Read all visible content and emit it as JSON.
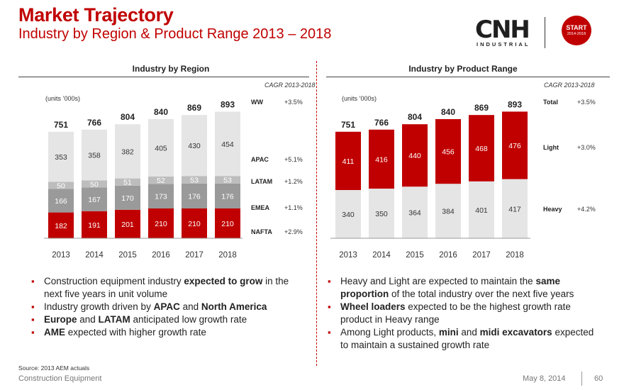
{
  "header": {
    "title": "Market Trajectory",
    "subtitle": "Industry by Region & Product Range 2013 – 2018"
  },
  "logo": {
    "word": "CNH",
    "sub": "INDUSTRIAL"
  },
  "badge": {
    "line1": "START",
    "line2": "2014-2018"
  },
  "colors": {
    "red": "#c00000",
    "darkgray": "#9a9a9a",
    "midgray": "#bdbdbd",
    "lightgray": "#e5e5e5"
  },
  "chart_data": [
    {
      "type": "bar",
      "stacked": true,
      "title": "Industry by Region",
      "units": "(units ’000s)",
      "categories": [
        "2013",
        "2014",
        "2015",
        "2016",
        "2017",
        "2018"
      ],
      "series": [
        {
          "name": "NAFTA",
          "values": [
            182,
            191,
            201,
            210,
            210,
            210
          ]
        },
        {
          "name": "EMEA",
          "values": [
            166,
            167,
            170,
            173,
            176,
            176
          ]
        },
        {
          "name": "LATAM",
          "values": [
            50,
            50,
            51,
            52,
            53,
            53
          ]
        },
        {
          "name": "APAC",
          "values": [
            353,
            358,
            382,
            405,
            430,
            454
          ]
        }
      ],
      "totals": [
        751,
        766,
        804,
        840,
        869,
        893
      ],
      "cagr_title": "CAGR  2013-2018",
      "cagr": [
        {
          "label": "WW",
          "value": "+3.5%"
        },
        {
          "label": "APAC",
          "value": "+5.1%"
        },
        {
          "label": "LATAM",
          "value": "+1.2%"
        },
        {
          "label": "EMEA",
          "value": "+1.1%"
        },
        {
          "label": "NAFTA",
          "value": "+2.9%"
        }
      ]
    },
    {
      "type": "bar",
      "stacked": true,
      "title": "Industry by Product Range",
      "units": "(units ’000s)",
      "categories": [
        "2013",
        "2014",
        "2015",
        "2016",
        "2017",
        "2018"
      ],
      "series": [
        {
          "name": "Heavy",
          "values": [
            340,
            350,
            364,
            384,
            401,
            417
          ]
        },
        {
          "name": "Light",
          "values": [
            411,
            416,
            440,
            456,
            468,
            476
          ]
        }
      ],
      "totals": [
        751,
        766,
        804,
        840,
        869,
        893
      ],
      "cagr_title": "CAGR  2013-2018",
      "cagr": [
        {
          "label": "Total",
          "value": "+3.5%"
        },
        {
          "label": "Light",
          "value": "+3.0%"
        },
        {
          "label": "Heavy",
          "value": "+4.2%"
        }
      ]
    }
  ],
  "left_bullets": [
    [
      "Construction equipment industry ",
      "expected to grow",
      " in the next five years in unit volume"
    ],
    [
      "Industry growth driven by ",
      "APAC",
      " and ",
      "North America",
      ""
    ],
    [
      "",
      "Europe",
      " and ",
      "LATAM",
      " anticipated low growth rate"
    ],
    [
      "",
      "AME",
      " expected with higher growth rate"
    ]
  ],
  "right_bullets": [
    [
      "Heavy and Light are expected to maintain the ",
      "same proportion",
      " of the total industry over the next five years"
    ],
    [
      "",
      "Wheel loaders",
      " expected to be the highest growth rate product in Heavy range"
    ],
    [
      "Among Light products, ",
      "mini",
      " and ",
      "midi excavators",
      " expected to maintain a sustained growth rate"
    ]
  ],
  "footer": {
    "source": "Source: 2013 AEM actuals",
    "left": "Construction Equipment",
    "date": "May 8, 2014",
    "page": "60"
  }
}
